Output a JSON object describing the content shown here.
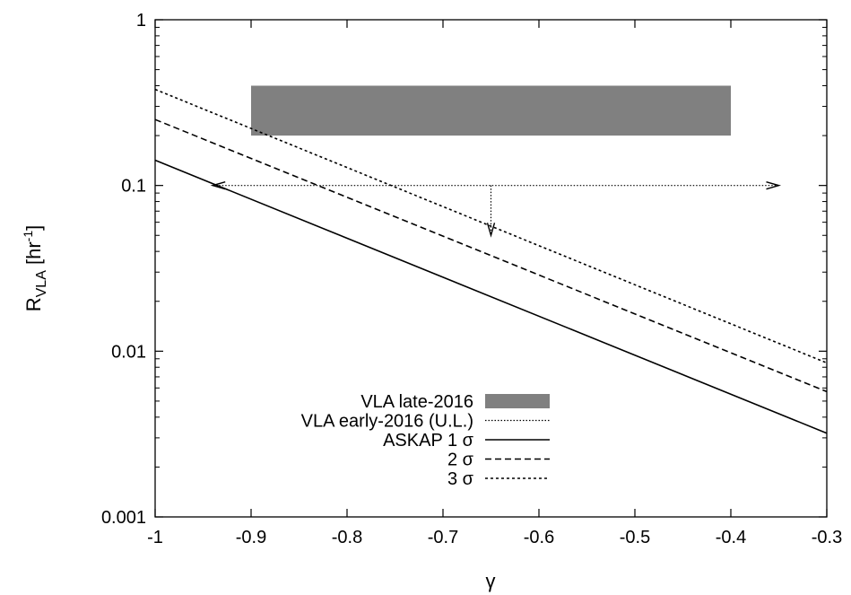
{
  "chart_data": {
    "type": "line",
    "xlabel": "γ",
    "ylabel": {
      "base": "R",
      "sub": "VLA",
      "unit_open": " [hr",
      "unit_sup": "-1",
      "unit_close": "]"
    },
    "xlim": [
      -1,
      -0.3
    ],
    "ylim": [
      0.001,
      1
    ],
    "y_scale": "log",
    "grid": false,
    "legend_position": "bottom-center",
    "x_ticks": [
      {
        "value": -1,
        "label": "-1"
      },
      {
        "value": -0.9,
        "label": "-0.9"
      },
      {
        "value": -0.8,
        "label": "-0.8"
      },
      {
        "value": -0.7,
        "label": "-0.7"
      },
      {
        "value": -0.6,
        "label": "-0.6"
      },
      {
        "value": -0.5,
        "label": "-0.5"
      },
      {
        "value": -0.4,
        "label": "-0.4"
      },
      {
        "value": -0.3,
        "label": "-0.3"
      }
    ],
    "y_ticks": [
      {
        "value": 0.001,
        "label": "0.001"
      },
      {
        "value": 0.01,
        "label": "0.01"
      },
      {
        "value": 0.1,
        "label": "0.1"
      },
      {
        "value": 1,
        "label": "1"
      }
    ],
    "series": [
      {
        "name": "VLA late-2016",
        "kind": "band",
        "x_range": [
          -0.9,
          -0.4
        ],
        "y_range": [
          0.2,
          0.4
        ],
        "color": "#808080"
      },
      {
        "name": "VLA early-2016 (U.L.)",
        "kind": "upper-limit",
        "x_range": [
          -0.94,
          -0.35
        ],
        "y": 0.1,
        "x_point": -0.65,
        "y_arrow_to": 0.05,
        "dash": "1.5,2"
      },
      {
        "name": "ASKAP 1 σ",
        "kind": "line",
        "x": [
          -1,
          -0.3
        ],
        "y": [
          0.142,
          0.0032
        ],
        "dash": ""
      },
      {
        "name": "2 σ",
        "kind": "line",
        "x": [
          -1,
          -0.3
        ],
        "y": [
          0.25,
          0.0057
        ],
        "dash": "7,4"
      },
      {
        "name": "3 σ",
        "kind": "line",
        "x": [
          -1,
          -0.3
        ],
        "y": [
          0.38,
          0.0085
        ],
        "dash": "3,3"
      }
    ]
  }
}
